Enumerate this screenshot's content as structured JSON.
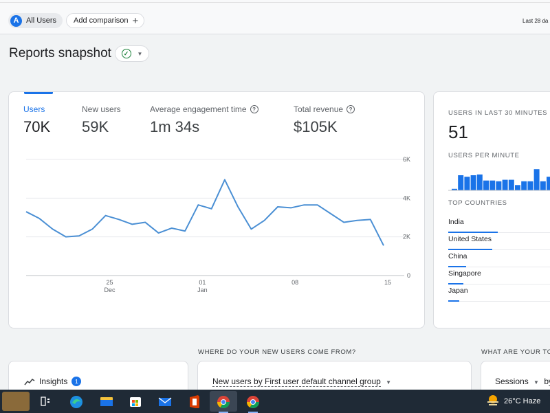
{
  "topbar": {
    "user_chip": {
      "avatar_letter": "A",
      "label": "All Users"
    },
    "compare_chip": {
      "label": "Add comparison",
      "icon": "plus-icon"
    },
    "date_range": "Last 28 da"
  },
  "page": {
    "title": "Reports snapshot",
    "status_icon": "check-circle-icon"
  },
  "metrics": [
    {
      "label": "Users",
      "value": "70K",
      "active": true
    },
    {
      "label": "New users",
      "value": "59K"
    },
    {
      "label": "Average engagement time",
      "value": "1m 34s",
      "help": "?"
    },
    {
      "label": "Total revenue",
      "value": "$105K",
      "help": "?"
    }
  ],
  "chart_data": {
    "type": "line",
    "series": [
      {
        "values": [
          3300,
          2950,
          2400,
          2000,
          2050,
          2400,
          3100,
          2900,
          2650,
          2750,
          2200,
          2450,
          2300,
          3650,
          3450,
          4950,
          3550,
          2400,
          2850,
          3550,
          3500,
          3650,
          3650,
          3200,
          2750,
          2850,
          2900,
          1550
        ]
      }
    ],
    "y_ticks": [
      "6K",
      "4K",
      "2K",
      "0"
    ],
    "ylim": [
      0,
      6000
    ],
    "x_ticks": [
      {
        "day": "25",
        "month": "Dec",
        "index": 6
      },
      {
        "day": "01",
        "month": "Jan",
        "index": 13
      },
      {
        "day": "08",
        "month": "",
        "index": 20
      },
      {
        "day": "15",
        "month": "",
        "index": 27
      }
    ],
    "color": "#4a8fd4",
    "grid": true
  },
  "realtime": {
    "users_caption": "USERS IN LAST 30 MINUTES",
    "users_value": "51",
    "per_minute_caption": "USERS PER MINUTE",
    "per_minute": [
      0.1,
      1,
      0.9,
      1,
      1.05,
      0.65,
      0.65,
      0.6,
      0.7,
      0.7,
      0.35,
      0.6,
      0.6,
      1.4,
      0.6,
      0.9
    ],
    "countries_caption": "TOP COUNTRIES",
    "countries": [
      {
        "name": "India",
        "share": 0.45
      },
      {
        "name": "United States",
        "share": 0.4
      },
      {
        "name": "China",
        "share": 0.16
      },
      {
        "name": "Singapore",
        "share": 0.14
      },
      {
        "name": "Japan",
        "share": 0.1
      }
    ]
  },
  "sections": {
    "new_users_heading": "WHERE DO YOUR NEW USERS COME FROM?",
    "right_heading": "WHAT ARE YOUR TO",
    "insights_label": "Insights",
    "insights_count": "1",
    "channel_dropdown": "New users by First user default channel group",
    "sessions_dropdown": "Sessions",
    "by_text": "by"
  },
  "taskbar": {
    "apps": [
      "weather-widget-icon",
      "task-view-icon",
      "edge-icon",
      "file-explorer-icon",
      "store-icon",
      "mail-icon",
      "office-icon",
      "chrome-icon",
      "chrome-icon"
    ],
    "weather": "26°C  Haze",
    "colors": {
      "bg": "#1f2a36",
      "accent": "#1a73e8"
    }
  }
}
